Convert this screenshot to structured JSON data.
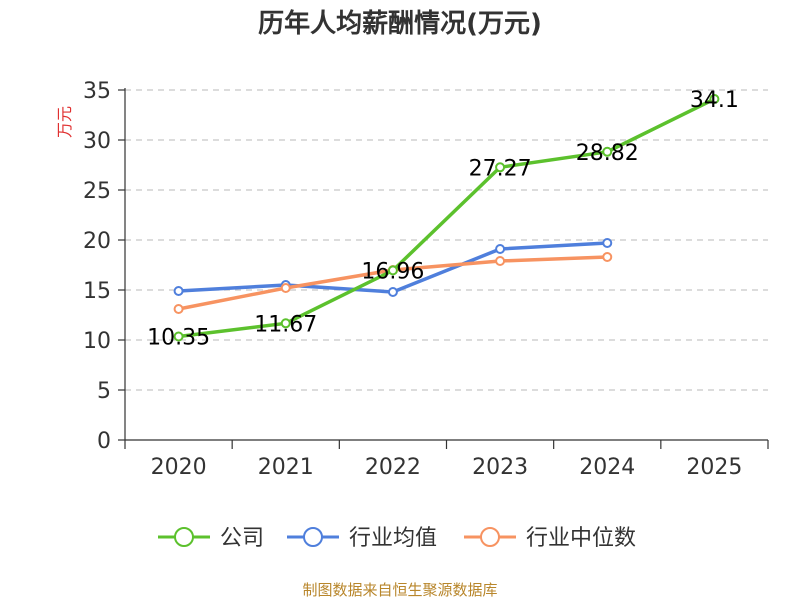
{
  "chart_data": {
    "type": "line",
    "title": "历年人均薪酬情况(万元)",
    "ylabel": "万元",
    "xlabel": "",
    "categories": [
      "2020",
      "2021",
      "2022",
      "2023",
      "2024",
      "2025"
    ],
    "ylim": [
      0,
      35
    ],
    "yticks": [
      0,
      5,
      10,
      15,
      20,
      25,
      30,
      35
    ],
    "grid": true,
    "legend_position": "bottom",
    "series": [
      {
        "name": "公司",
        "color": "#5cc12d",
        "values": [
          10.35,
          11.67,
          16.96,
          27.27,
          28.82,
          34.1
        ],
        "labels": [
          "10.35",
          "11.67",
          "16.96",
          "27.27",
          "28.82",
          "34.1"
        ]
      },
      {
        "name": "行业均值",
        "color": "#4f7fdc",
        "values": [
          14.9,
          15.5,
          14.8,
          19.1,
          19.7,
          null
        ]
      },
      {
        "name": "行业中位数",
        "color": "#f79361",
        "values": [
          13.1,
          15.2,
          17.0,
          17.9,
          18.3,
          null
        ]
      }
    ]
  },
  "source": "制图数据来自恒生聚源数据库"
}
